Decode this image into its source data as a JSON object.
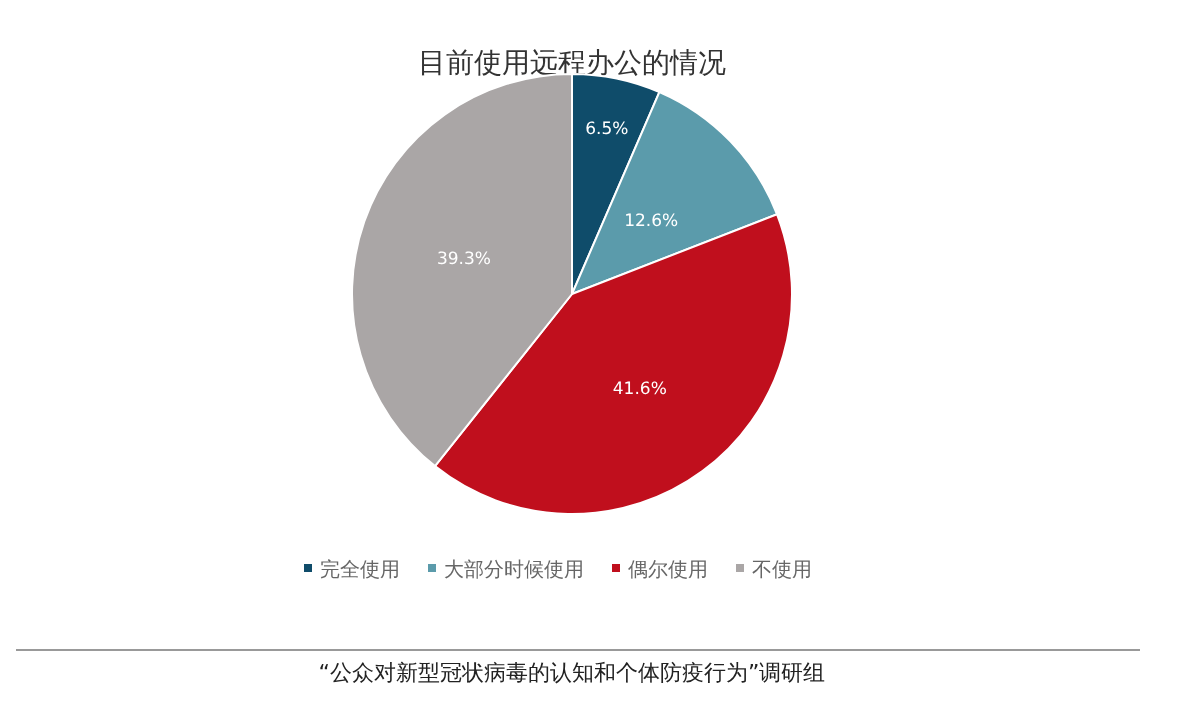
{
  "chart_data": {
    "type": "pie",
    "title": "目前使用远程办公的情况",
    "categories": [
      "完全使用",
      "大部分时候使用",
      "偶尔使用",
      "不使用"
    ],
    "values": [
      6.5,
      12.6,
      41.6,
      39.3
    ],
    "colors": [
      "#0f4c6a",
      "#5b9bab",
      "#c00f1d",
      "#aaa6a6"
    ],
    "value_labels": [
      "6.5%",
      "12.6%",
      "41.6%",
      "39.3%"
    ],
    "legend": "bottom",
    "annotations": [
      "“公众对新型冠状病毒的认知和个体防疫行为”调研组"
    ]
  }
}
